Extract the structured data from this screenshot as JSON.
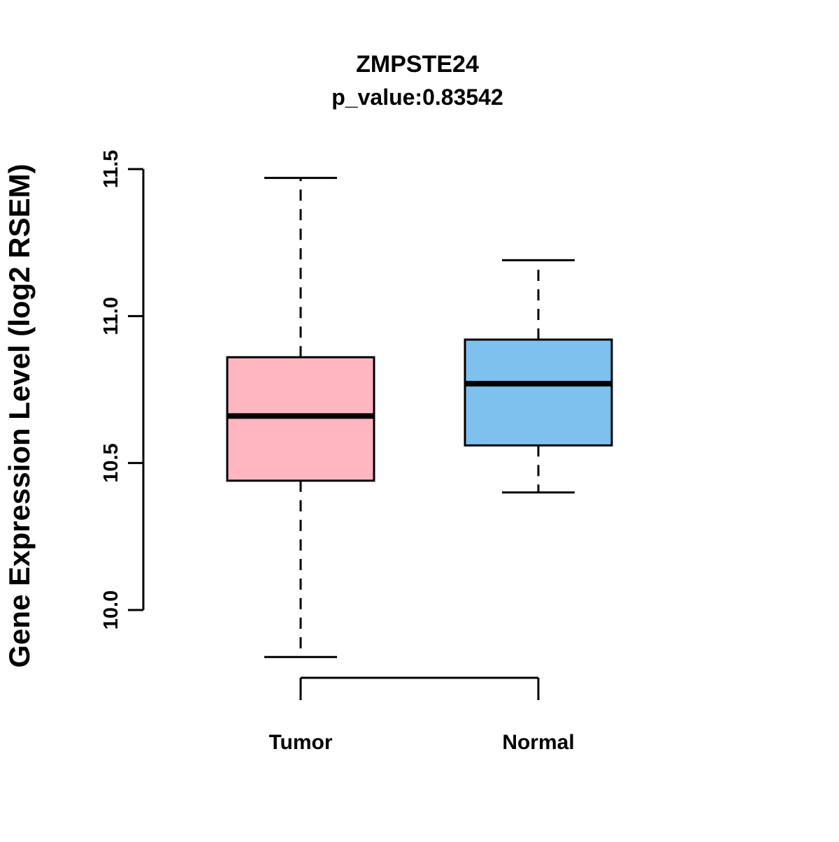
{
  "chart_data": {
    "type": "boxplot",
    "title": "ZMPSTE24",
    "subtitle": "p_value:0.83542",
    "ylabel": "Gene Expression Level (log2 RSEM)",
    "xlabel": "",
    "categories": [
      "Tumor",
      "Normal"
    ],
    "ylim": [
      9.8,
      11.5
    ],
    "yticks": [
      10.0,
      10.5,
      11.0,
      11.5
    ],
    "grid": false,
    "legend": "none",
    "series": [
      {
        "name": "Tumor",
        "color": "#FFB6C1",
        "min": 9.84,
        "q1": 10.44,
        "median": 10.66,
        "q3": 10.86,
        "max": 11.47
      },
      {
        "name": "Normal",
        "color": "#7EC0EE",
        "min": 10.4,
        "q1": 10.56,
        "median": 10.77,
        "q3": 10.92,
        "max": 11.19
      }
    ]
  }
}
